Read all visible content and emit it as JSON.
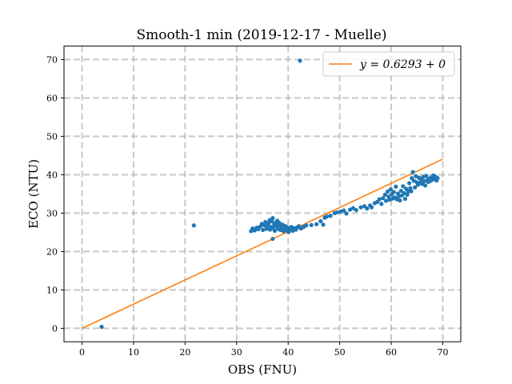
{
  "chart_data": {
    "type": "scatter",
    "title": "Smooth-1 min (2019-12-17 - Muelle)",
    "xlabel": "OBS (FNU)",
    "ylabel": "ECO (NTU)",
    "xlim": [
      -3.5,
      73.5
    ],
    "ylim": [
      -3.5,
      73.5
    ],
    "x_ticks": [
      0,
      10,
      20,
      30,
      40,
      50,
      60,
      70
    ],
    "y_ticks": [
      0,
      10,
      20,
      30,
      40,
      50,
      60,
      70
    ],
    "grid": true,
    "legend_position": "top-right",
    "colors": {
      "scatter": "#1f77b4",
      "fit": "#ff7f0e",
      "grid": "#b0b0b0"
    },
    "fit_line": {
      "label": "y = 0.6293 + 0",
      "slope": 0.6293,
      "intercept": 0,
      "x_range": [
        0,
        70
      ]
    },
    "scatter_points": [
      [
        3.8,
        0.4
      ],
      [
        21.7,
        26.8
      ],
      [
        42.3,
        69.7
      ],
      [
        37.0,
        23.3
      ],
      [
        32.8,
        25.3
      ],
      [
        33.1,
        26.0
      ],
      [
        33.5,
        25.5
      ],
      [
        33.9,
        26.2
      ],
      [
        34.2,
        25.8
      ],
      [
        34.6,
        26.5
      ],
      [
        34.9,
        27.2
      ],
      [
        35.1,
        25.6
      ],
      [
        35.4,
        26.8
      ],
      [
        35.6,
        27.7
      ],
      [
        35.8,
        25.9
      ],
      [
        36.0,
        26.6
      ],
      [
        36.2,
        27.3
      ],
      [
        36.4,
        28.2
      ],
      [
        36.5,
        25.7
      ],
      [
        36.7,
        26.4
      ],
      [
        36.8,
        27.9
      ],
      [
        37.0,
        28.7
      ],
      [
        37.1,
        26.1
      ],
      [
        37.3,
        27.1
      ],
      [
        37.4,
        25.4
      ],
      [
        37.6,
        27.6
      ],
      [
        37.7,
        26.7
      ],
      [
        37.9,
        28.0
      ],
      [
        38.0,
        25.9
      ],
      [
        38.2,
        26.9
      ],
      [
        38.3,
        27.4
      ],
      [
        38.5,
        25.6
      ],
      [
        38.7,
        26.3
      ],
      [
        38.9,
        27.0
      ],
      [
        39.1,
        25.3
      ],
      [
        39.3,
        26.0
      ],
      [
        39.5,
        26.6
      ],
      [
        39.7,
        25.5
      ],
      [
        39.9,
        26.2
      ],
      [
        40.1,
        25.1
      ],
      [
        40.3,
        25.8
      ],
      [
        40.6,
        26.4
      ],
      [
        40.9,
        25.4
      ],
      [
        41.2,
        26.1
      ],
      [
        41.5,
        25.7
      ],
      [
        41.8,
        26.3
      ],
      [
        42.1,
        26.6
      ],
      [
        42.5,
        26.0
      ],
      [
        43.0,
        26.4
      ],
      [
        43.5,
        26.8
      ],
      [
        44.5,
        26.9
      ],
      [
        45.5,
        27.1
      ],
      [
        46.3,
        27.9
      ],
      [
        46.8,
        27.0
      ],
      [
        47.1,
        28.8
      ],
      [
        47.5,
        29.1
      ],
      [
        48.2,
        29.3
      ],
      [
        49.0,
        30.0
      ],
      [
        49.5,
        30.2
      ],
      [
        50.2,
        30.4
      ],
      [
        50.8,
        30.7
      ],
      [
        51.3,
        29.9
      ],
      [
        52.0,
        30.9
      ],
      [
        52.6,
        31.3
      ],
      [
        53.2,
        30.8
      ],
      [
        54.1,
        31.5
      ],
      [
        54.8,
        31.8
      ],
      [
        55.3,
        31.2
      ],
      [
        55.9,
        32.0
      ],
      [
        56.2,
        31.5
      ],
      [
        56.8,
        32.6
      ],
      [
        57.3,
        32.9
      ],
      [
        57.7,
        33.6
      ],
      [
        58.1,
        32.4
      ],
      [
        58.4,
        33.9
      ],
      [
        58.8,
        34.8
      ],
      [
        59.0,
        33.2
      ],
      [
        59.3,
        35.6
      ],
      [
        59.5,
        34.3
      ],
      [
        59.7,
        33.5
      ],
      [
        59.9,
        36.2
      ],
      [
        60.1,
        34.9
      ],
      [
        60.3,
        33.8
      ],
      [
        60.5,
        35.5
      ],
      [
        60.7,
        34.1
      ],
      [
        60.9,
        36.9
      ],
      [
        61.1,
        33.6
      ],
      [
        61.3,
        35.1
      ],
      [
        61.5,
        34.4
      ],
      [
        61.7,
        33.3
      ],
      [
        61.9,
        35.8
      ],
      [
        62.1,
        34.6
      ],
      [
        62.3,
        37.0
      ],
      [
        62.5,
        35.2
      ],
      [
        62.7,
        33.7
      ],
      [
        62.9,
        36.3
      ],
      [
        63.1,
        34.8
      ],
      [
        63.3,
        35.6
      ],
      [
        63.5,
        37.8
      ],
      [
        63.7,
        36.5
      ],
      [
        63.9,
        35.7
      ],
      [
        64.0,
        39.1
      ],
      [
        64.2,
        40.7
      ],
      [
        64.4,
        38.4
      ],
      [
        64.6,
        36.7
      ],
      [
        64.8,
        39.6
      ],
      [
        65.0,
        38.0
      ],
      [
        65.2,
        37.4
      ],
      [
        65.4,
        39.2
      ],
      [
        65.6,
        37.9
      ],
      [
        65.8,
        38.8
      ],
      [
        66.0,
        37.6
      ],
      [
        66.2,
        39.4
      ],
      [
        66.4,
        38.3
      ],
      [
        66.6,
        37.2
      ],
      [
        66.8,
        39.7
      ],
      [
        67.0,
        38.6
      ],
      [
        67.2,
        38.1
      ],
      [
        67.4,
        39.0
      ],
      [
        67.6,
        38.4
      ],
      [
        67.8,
        39.3
      ],
      [
        68.0,
        38.7
      ],
      [
        68.2,
        39.8
      ],
      [
        68.4,
        38.9
      ],
      [
        68.6,
        39.5
      ],
      [
        68.8,
        38.5
      ],
      [
        69.0,
        39.1
      ]
    ]
  }
}
